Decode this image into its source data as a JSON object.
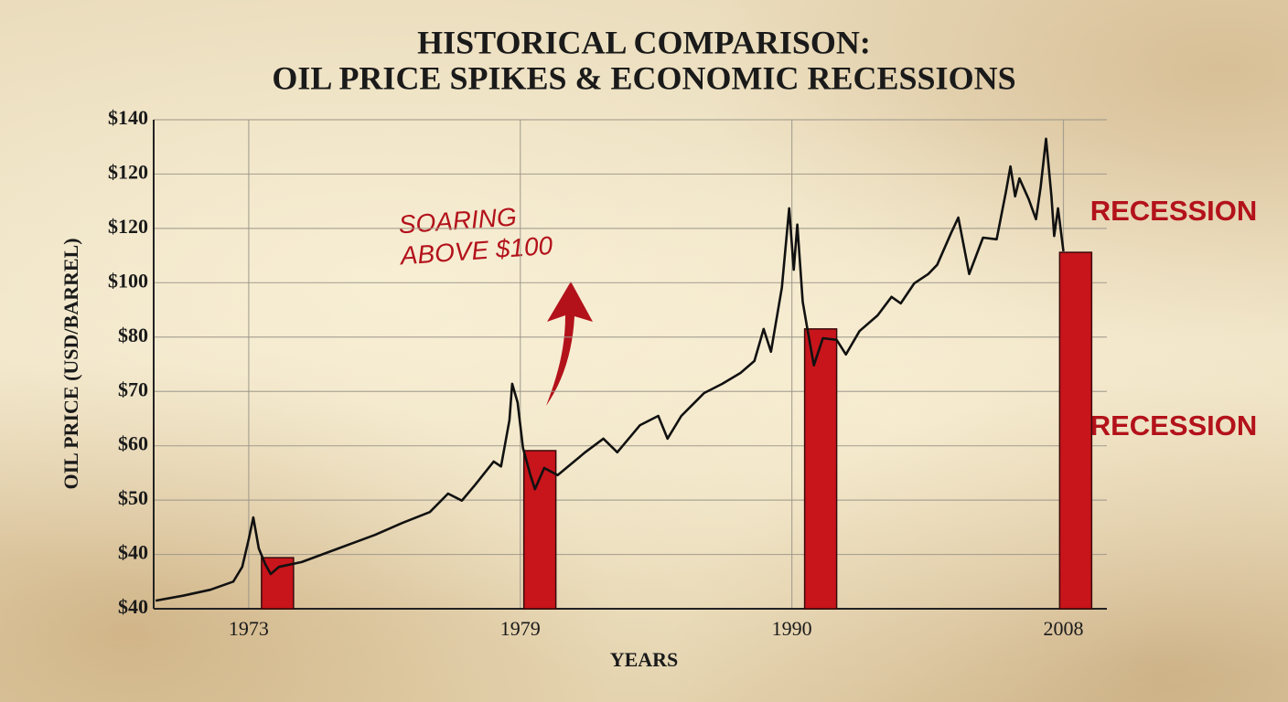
{
  "chart_data": {
    "type": "line",
    "title": [
      "HISTORICAL COMPARISON:",
      "OIL PRICE SPIKES & ECONOMIC RECESSIONS"
    ],
    "y_label": "OIL PRICE (USD/BARREL)",
    "x_label": "YEARS",
    "annotations": {
      "soaring": [
        "SOARING",
        "ABOVE $100"
      ],
      "recession": [
        "RECESSION",
        "RECESSION"
      ]
    },
    "color": "#111111",
    "grid": true,
    "xlim": [
      0.65,
      4.16
    ],
    "xticks": [
      {
        "value": 1,
        "label": "1973"
      },
      {
        "value": 2,
        "label": "1979"
      },
      {
        "value": 3,
        "label": "1990"
      },
      {
        "value": 4,
        "label": "2008"
      }
    ],
    "ylim": [
      0,
      9
    ],
    "yticks": [
      {
        "value": 0,
        "label": "$40"
      },
      {
        "value": 1,
        "label": "$40"
      },
      {
        "value": 2,
        "label": "$50"
      },
      {
        "value": 3,
        "label": "$60"
      },
      {
        "value": 4,
        "label": "$70"
      },
      {
        "value": 5,
        "label": "$80"
      },
      {
        "value": 6,
        "label": "$100"
      },
      {
        "value": 7,
        "label": "$120"
      },
      {
        "value": 8,
        "label": "$120"
      },
      {
        "value": 9,
        "label": "$140"
      }
    ],
    "x": [
      0.657,
      0.758,
      0.859,
      0.943,
      0.976,
      1.0,
      1.017,
      1.037,
      1.061,
      1.081,
      1.111,
      1.195,
      1.33,
      1.465,
      1.566,
      1.667,
      1.734,
      1.785,
      1.835,
      1.902,
      1.929,
      1.96,
      1.97,
      1.99,
      2.01,
      2.037,
      2.054,
      2.088,
      2.138,
      2.239,
      2.306,
      2.357,
      2.441,
      2.508,
      2.542,
      2.593,
      2.677,
      2.744,
      2.811,
      2.862,
      2.896,
      2.923,
      2.963,
      2.99,
      3.007,
      3.02,
      3.04,
      3.057,
      3.081,
      3.114,
      3.165,
      3.199,
      3.249,
      3.316,
      3.367,
      3.401,
      3.451,
      3.502,
      3.535,
      3.586,
      3.613,
      3.653,
      3.704,
      3.754,
      3.788,
      3.805,
      3.822,
      3.838,
      3.872,
      3.899,
      3.916,
      3.936,
      3.956,
      3.966,
      3.98,
      4.0
    ],
    "values": [
      0.15,
      0.24,
      0.35,
      0.5,
      0.77,
      1.28,
      1.68,
      1.11,
      0.82,
      0.64,
      0.77,
      0.86,
      1.11,
      1.36,
      1.58,
      1.78,
      2.12,
      1.99,
      2.29,
      2.71,
      2.62,
      3.47,
      4.14,
      3.8,
      2.96,
      2.46,
      2.2,
      2.59,
      2.46,
      2.88,
      3.13,
      2.88,
      3.38,
      3.55,
      3.13,
      3.55,
      3.97,
      4.14,
      4.34,
      4.56,
      5.15,
      4.73,
      5.91,
      7.37,
      6.24,
      7.07,
      5.65,
      5.15,
      4.48,
      4.98,
      4.95,
      4.68,
      5.11,
      5.4,
      5.74,
      5.62,
      5.99,
      6.16,
      6.33,
      6.91,
      7.2,
      6.16,
      6.83,
      6.8,
      7.67,
      8.14,
      7.59,
      7.92,
      7.54,
      7.17,
      7.76,
      8.65,
      7.59,
      6.86,
      7.37,
      6.58
    ],
    "bars": {
      "color": "#c8141b",
      "x": [
        1.106,
        2.072,
        3.106,
        4.045
      ],
      "values": [
        0.94,
        2.91,
        5.15,
        6.56
      ]
    }
  }
}
